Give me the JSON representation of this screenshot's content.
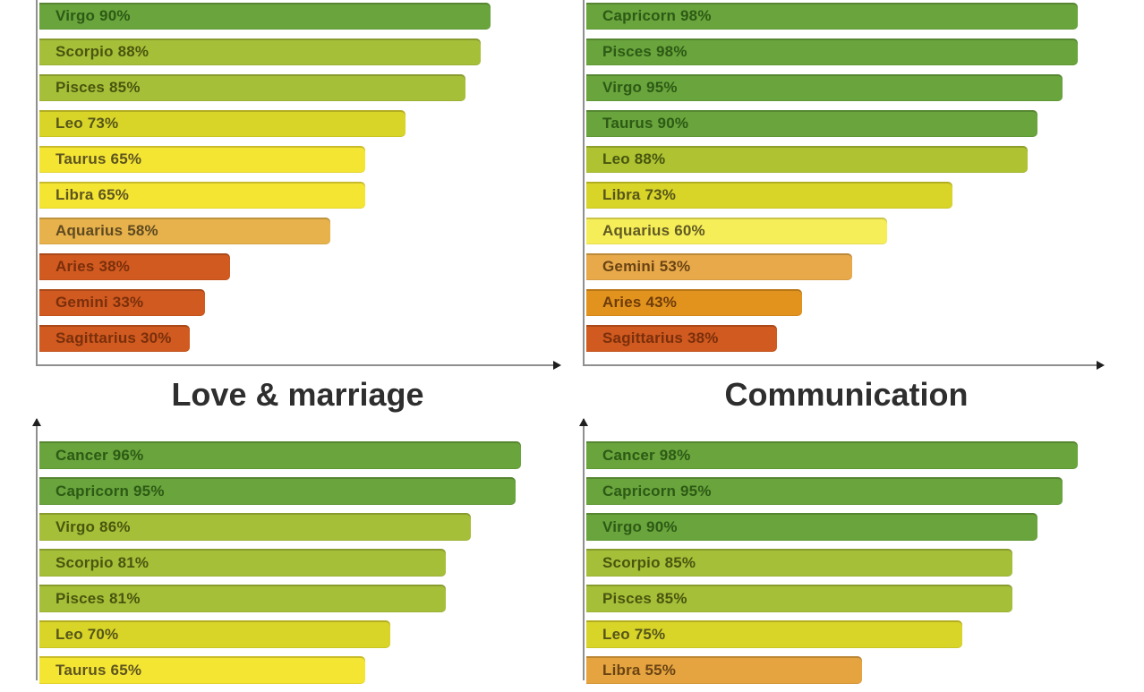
{
  "page": {
    "background": "#ffffff",
    "axis_color": "#8f8f8f",
    "axis_arrow_color": "#1f1f1f",
    "title_color": "#2e2e2e"
  },
  "icons": {
    "x_axis_arrow": "right-arrowhead-icon",
    "y_axis_arrow": "up-arrowhead-icon"
  },
  "chart_data": [
    {
      "type": "bar",
      "orientation": "horizontal",
      "position": "top-left",
      "title": "",
      "unit": "%",
      "xlim": [
        0,
        100
      ],
      "grid": false,
      "legend": false,
      "bars": [
        {
          "sign": "Virgo",
          "value": 90,
          "label": "Virgo 90%",
          "color": "#69a43c",
          "label_color": "#2d5a15"
        },
        {
          "sign": "Scorpio",
          "value": 88,
          "label": "Scorpio 88%",
          "color": "#a6bf39",
          "label_color": "#48560e"
        },
        {
          "sign": "Pisces",
          "value": 85,
          "label": "Pisces 85%",
          "color": "#a6bf39",
          "label_color": "#48560e"
        },
        {
          "sign": "Leo",
          "value": 73,
          "label": "Leo 73%",
          "color": "#d9d428",
          "label_color": "#55561a"
        },
        {
          "sign": "Taurus",
          "value": 65,
          "label": "Taurus 65%",
          "color": "#f5e533",
          "label_color": "#5d5520"
        },
        {
          "sign": "Libra",
          "value": 65,
          "label": "Libra 65%",
          "color": "#f5e533",
          "label_color": "#5d5520"
        },
        {
          "sign": "Aquarius",
          "value": 58,
          "label": "Aquarius 58%",
          "color": "#e7b24b",
          "label_color": "#5e4a22"
        },
        {
          "sign": "Aries",
          "value": 38,
          "label": "Aries 38%",
          "color": "#d05a1f",
          "label_color": "#7a2f0c"
        },
        {
          "sign": "Gemini",
          "value": 33,
          "label": "Gemini 33%",
          "color": "#d05a1f",
          "label_color": "#7a2f0c"
        },
        {
          "sign": "Sagittarius",
          "value": 30,
          "label": "Sagittarius 30%",
          "color": "#d05a1f",
          "label_color": "#7a2f0c"
        }
      ]
    },
    {
      "type": "bar",
      "orientation": "horizontal",
      "position": "top-right",
      "title": "",
      "unit": "%",
      "xlim": [
        0,
        100
      ],
      "grid": false,
      "legend": false,
      "bars": [
        {
          "sign": "Capricorn",
          "value": 98,
          "label": "Capricorn 98%",
          "color": "#69a43c",
          "label_color": "#2d5a15"
        },
        {
          "sign": "Pisces",
          "value": 98,
          "label": "Pisces 98%",
          "color": "#69a43c",
          "label_color": "#2d5a15"
        },
        {
          "sign": "Virgo",
          "value": 95,
          "label": "Virgo 95%",
          "color": "#69a43c",
          "label_color": "#2d5a15"
        },
        {
          "sign": "Taurus",
          "value": 90,
          "label": "Taurus 90%",
          "color": "#69a43c",
          "label_color": "#2d5a15"
        },
        {
          "sign": "Leo",
          "value": 88,
          "label": "Leo 88%",
          "color": "#aec232",
          "label_color": "#48560e"
        },
        {
          "sign": "Libra",
          "value": 73,
          "label": "Libra 73%",
          "color": "#d9d428",
          "label_color": "#55561a"
        },
        {
          "sign": "Aquarius",
          "value": 60,
          "label": "Aquarius 60%",
          "color": "#f6ee58",
          "label_color": "#615a24"
        },
        {
          "sign": "Gemini",
          "value": 53,
          "label": "Gemini 53%",
          "color": "#e7a94a",
          "label_color": "#6b4414"
        },
        {
          "sign": "Aries",
          "value": 43,
          "label": "Aries 43%",
          "color": "#e2931d",
          "label_color": "#6e3c0a"
        },
        {
          "sign": "Sagittarius",
          "value": 38,
          "label": "Sagittarius 38%",
          "color": "#d05a1f",
          "label_color": "#7a2f0c"
        }
      ]
    },
    {
      "type": "bar",
      "orientation": "horizontal",
      "position": "bottom-left",
      "title": "Love & marriage",
      "unit": "%",
      "xlim": [
        0,
        100
      ],
      "grid": false,
      "legend": false,
      "bars": [
        {
          "sign": "Cancer",
          "value": 96,
          "label": "Cancer 96%",
          "color": "#69a43c",
          "label_color": "#2d5a15"
        },
        {
          "sign": "Capricorn",
          "value": 95,
          "label": "Capricorn 95%",
          "color": "#69a43c",
          "label_color": "#2d5a15"
        },
        {
          "sign": "Virgo",
          "value": 86,
          "label": "Virgo 86%",
          "color": "#a6bf39",
          "label_color": "#48560e"
        },
        {
          "sign": "Scorpio",
          "value": 81,
          "label": "Scorpio 81%",
          "color": "#a6bf39",
          "label_color": "#48560e"
        },
        {
          "sign": "Pisces",
          "value": 81,
          "label": "Pisces 81%",
          "color": "#a6bf39",
          "label_color": "#48560e"
        },
        {
          "sign": "Leo",
          "value": 70,
          "label": "Leo 70%",
          "color": "#d9d428",
          "label_color": "#55561a"
        },
        {
          "sign": "Taurus",
          "value": 65,
          "label": "Taurus 65%",
          "color": "#f5e533",
          "label_color": "#5d5520"
        }
      ]
    },
    {
      "type": "bar",
      "orientation": "horizontal",
      "position": "bottom-right",
      "title": "Communication",
      "unit": "%",
      "xlim": [
        0,
        100
      ],
      "grid": false,
      "legend": false,
      "bars": [
        {
          "sign": "Cancer",
          "value": 98,
          "label": "Cancer 98%",
          "color": "#69a43c",
          "label_color": "#2d5a15"
        },
        {
          "sign": "Capricorn",
          "value": 95,
          "label": "Capricorn 95%",
          "color": "#69a43c",
          "label_color": "#2d5a15"
        },
        {
          "sign": "Virgo",
          "value": 90,
          "label": "Virgo 90%",
          "color": "#69a43c",
          "label_color": "#2d5a15"
        },
        {
          "sign": "Scorpio",
          "value": 85,
          "label": "Scorpio 85%",
          "color": "#a6bf39",
          "label_color": "#48560e"
        },
        {
          "sign": "Pisces",
          "value": 85,
          "label": "Pisces 85%",
          "color": "#a6bf39",
          "label_color": "#48560e"
        },
        {
          "sign": "Leo",
          "value": 75,
          "label": "Leo 75%",
          "color": "#d9d428",
          "label_color": "#55561a"
        },
        {
          "sign": "Libra",
          "value": 55,
          "label": "Libra 55%",
          "color": "#e5a440",
          "label_color": "#6b4414"
        }
      ]
    }
  ]
}
